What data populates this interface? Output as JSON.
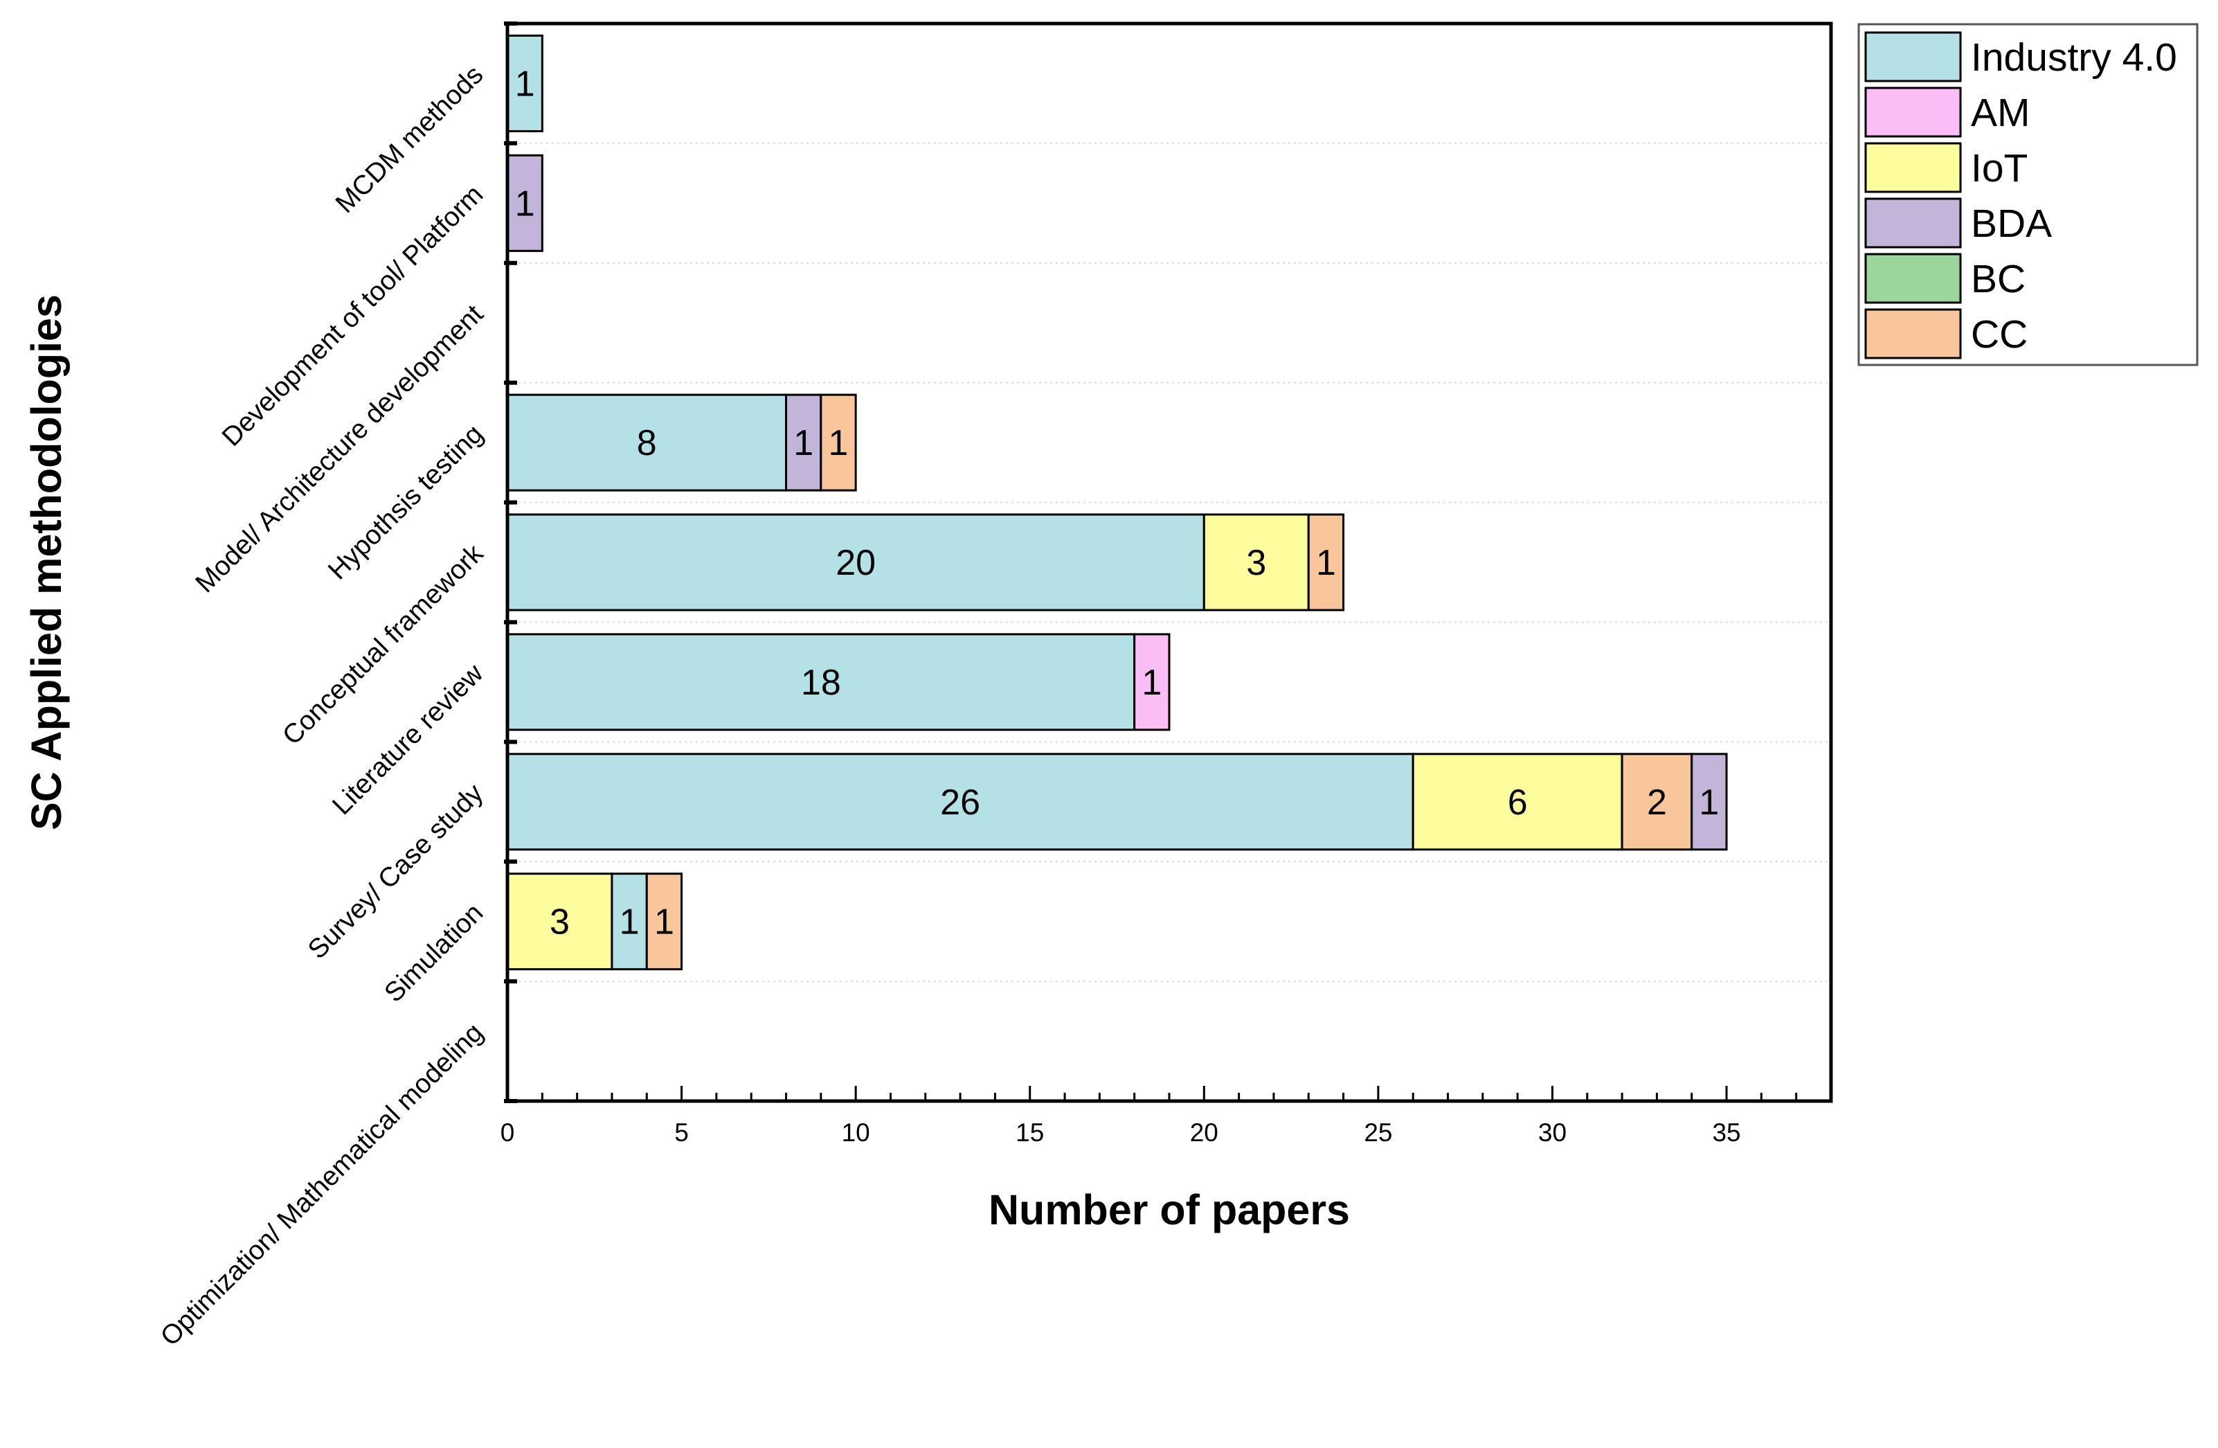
{
  "chart_data": {
    "type": "bar",
    "orientation": "horizontal",
    "stacked": true,
    "title": "",
    "xlabel": "Number of papers",
    "ylabel": "SC Applied methodologies",
    "xlim": [
      0,
      38
    ],
    "xticks": [
      0,
      5,
      10,
      15,
      20,
      25,
      30,
      35
    ],
    "grid": "horizontal dotted separators",
    "legend_position": "top-right (outside plot)",
    "legend": [
      {
        "name": "Industry 4.0",
        "color": "#b3e1e6"
      },
      {
        "name": "AM",
        "color": "#fbbdf5"
      },
      {
        "name": "IoT",
        "color": "#fdfd9e"
      },
      {
        "name": "BDA",
        "color": "#c3b4d9"
      },
      {
        "name": "BC",
        "color": "#9bd69b"
      },
      {
        "name": "CC",
        "color": "#f9c69c"
      }
    ],
    "categories": [
      "MCDM methods",
      "Development of tool/ Platform",
      "Model/ Architecture development",
      "Hypothsis testing",
      "Conceptual framework",
      "Literature review",
      "Survey/ Case study",
      "Simulation",
      "Optimization/ Mathematical modeling"
    ],
    "bars": [
      {
        "category": "MCDM methods",
        "segments": [
          {
            "series": "Industry 4.0",
            "value": 1
          }
        ]
      },
      {
        "category": "Development of tool/ Platform",
        "segments": [
          {
            "series": "BDA",
            "value": 1
          }
        ]
      },
      {
        "category": "Model/ Architecture development",
        "segments": []
      },
      {
        "category": "Hypothsis testing",
        "segments": [
          {
            "series": "Industry 4.0",
            "value": 8
          },
          {
            "series": "BDA",
            "value": 1
          },
          {
            "series": "CC",
            "value": 1
          }
        ]
      },
      {
        "category": "Conceptual framework",
        "segments": [
          {
            "series": "Industry 4.0",
            "value": 20
          },
          {
            "series": "IoT",
            "value": 3
          },
          {
            "series": "CC",
            "value": 1
          }
        ]
      },
      {
        "category": "Literature review",
        "segments": [
          {
            "series": "Industry 4.0",
            "value": 18
          },
          {
            "series": "AM",
            "value": 1
          }
        ]
      },
      {
        "category": "Survey/ Case study",
        "segments": [
          {
            "series": "Industry 4.0",
            "value": 26
          },
          {
            "series": "IoT",
            "value": 6
          },
          {
            "series": "CC",
            "value": 2
          },
          {
            "series": "BDA",
            "value": 1
          }
        ]
      },
      {
        "category": "Simulation",
        "segments": [
          {
            "series": "IoT",
            "value": 3
          },
          {
            "series": "Industry 4.0",
            "value": 1
          },
          {
            "series": "CC",
            "value": 1
          }
        ]
      },
      {
        "category": "Optimization/ Mathematical modeling",
        "segments": []
      }
    ]
  }
}
